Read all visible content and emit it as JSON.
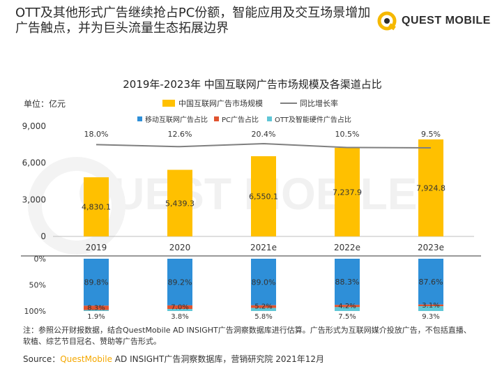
{
  "headline": "OTT及其他形式广告继续抢占PC份额，智能应用及交互场景增加广告触点，并为巨头流量生态拓展边界",
  "logo_text": "QUEST MOBILE",
  "watermark": "QUEST MOBILE",
  "colors": {
    "bar": "#ffc000",
    "line": "#7f7f7f",
    "mobile": "#2e8fd8",
    "pc": "#e0532f",
    "ott": "#5fc6d6",
    "brand": "#f5a800"
  },
  "chart_data": [
    {
      "type": "bar",
      "title": "2019年-2023年 中国互联网广告市场规模及各渠道占比",
      "ylabel": "单位：亿元",
      "categories": [
        "2019",
        "2020",
        "2021e",
        "2022e",
        "2023e"
      ],
      "ylim": [
        0,
        9000
      ],
      "yticks": [
        "0",
        "3,000",
        "6,000",
        "9,000"
      ],
      "series": [
        {
          "name": "中国互联网广告市场规模",
          "type": "bar",
          "values": [
            4830.1,
            5439.3,
            6550.1,
            7237.9,
            7924.8
          ],
          "labels": [
            "4,830.1",
            "5,439.3",
            "6,550.1",
            "7,237.9",
            "7,924.8"
          ]
        },
        {
          "name": "同比增长率",
          "type": "line",
          "values": [
            18.0,
            12.6,
            20.4,
            10.5,
            9.5
          ],
          "labels": [
            "18.0%",
            "12.6%",
            "20.4%",
            "10.5%",
            "9.5%"
          ]
        }
      ]
    },
    {
      "type": "bar",
      "stacked": true,
      "categories": [
        "2019",
        "2020",
        "2021e",
        "2022e",
        "2023e"
      ],
      "ylim": [
        0,
        100
      ],
      "yticks": [
        "0%",
        "50%",
        "100%"
      ],
      "series": [
        {
          "name": "移动互联网广告占比",
          "values": [
            89.8,
            89.2,
            89.0,
            88.3,
            87.6
          ],
          "labels": [
            "89.8%",
            "89.2%",
            "89.0%",
            "88.3%",
            "87.6%"
          ]
        },
        {
          "name": "PC广告占比",
          "values": [
            8.3,
            7.0,
            5.2,
            4.2,
            3.1
          ],
          "labels": [
            "8.3%",
            "7.0%",
            "5.2%",
            "4.2%",
            "3.1%"
          ]
        },
        {
          "name": "OTT及智能硬件广告占比",
          "values": [
            1.9,
            3.8,
            5.8,
            7.5,
            9.3
          ],
          "labels": [
            "1.9%",
            "3.8%",
            "5.8%",
            "7.5%",
            "9.3%"
          ]
        }
      ]
    }
  ],
  "note": "注：参照公开财报数据，结合QuestMobile AD INSIGHT广告洞察数据库进行估算。广告形式为互联网媒介投放广告，不包括直播、软植、综艺节目冠名、赞助等广告形式。",
  "source": {
    "prefix": "Source：",
    "brand": "QuestMobile",
    "rest": " AD INSIGHT广告洞察数据库，营销研究院 2021年12月"
  }
}
